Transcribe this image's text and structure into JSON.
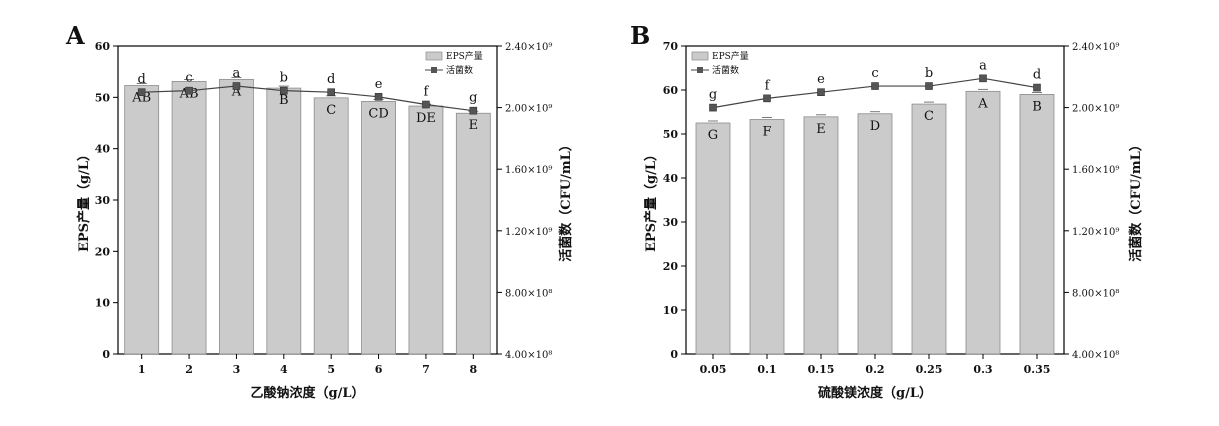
{
  "chart_data": [
    {
      "panel_label": "A",
      "type": "bar",
      "combo": "bar with line on secondary axis",
      "categories": [
        "1",
        "2",
        "3",
        "4",
        "5",
        "6",
        "7",
        "8"
      ],
      "xlabel": "乙酸钠浓度（g/L）",
      "ylabel": "EPS产量（g/L）",
      "y2label": "活菌数（CFU/mL）",
      "ylim": [
        0,
        60
      ],
      "y_ticks": [
        "0",
        "10",
        "20",
        "30",
        "40",
        "50",
        "60"
      ],
      "y2lim": [
        400000000,
        2400000000
      ],
      "y2_ticks": [
        "4.00×10⁸",
        "8.00×10⁸",
        "1.20×10⁹",
        "1.60×10⁹",
        "2.00×10⁹",
        "2.40×10⁹"
      ],
      "series": [
        {
          "name": "EPS产量",
          "kind": "bar",
          "axis": "left",
          "values": [
            52.3,
            53.1,
            53.5,
            51.8,
            49.9,
            49.2,
            48.3,
            46.9
          ],
          "labels": [
            "AB",
            "AB",
            "A",
            "B",
            "C",
            "CD",
            "DE",
            "E"
          ]
        },
        {
          "name": "活菌数",
          "kind": "line",
          "axis": "right",
          "values": [
            2100000000,
            2110000000,
            2140000000,
            2110000000,
            2100000000,
            2070000000,
            2020000000,
            1980000000
          ],
          "labels": [
            "d",
            "c",
            "a",
            "b",
            "d",
            "e",
            "f",
            "g"
          ]
        }
      ],
      "legend_position": "top-right",
      "grid": false,
      "colors": {
        "bar": "#cbcbcb",
        "bar_edge": "#8c8c8c",
        "line": "#444444"
      }
    },
    {
      "panel_label": "B",
      "type": "bar",
      "combo": "bar with line on secondary axis",
      "categories": [
        "0.05",
        "0.1",
        "0.15",
        "0.2",
        "0.25",
        "0.3",
        "0.35"
      ],
      "xlabel": "硫酸镁浓度（g/L）",
      "ylabel": "EPS产量（g/L）",
      "y2label": "活菌数（CFU/mL）",
      "ylim": [
        0,
        70
      ],
      "y_ticks": [
        "0",
        "10",
        "20",
        "30",
        "40",
        "50",
        "60",
        "70"
      ],
      "y2lim": [
        400000000,
        2400000000
      ],
      "y2_ticks": [
        "4.00×10⁸",
        "8.00×10⁸",
        "1.20×10⁹",
        "1.60×10⁹",
        "2.00×10⁹",
        "2.40×10⁹"
      ],
      "series": [
        {
          "name": "EPS产量",
          "kind": "bar",
          "axis": "left",
          "values": [
            52.5,
            53.3,
            53.9,
            54.6,
            56.8,
            59.7,
            59.0
          ],
          "labels": [
            "G",
            "F",
            "E",
            "D",
            "C",
            "A",
            "B"
          ]
        },
        {
          "name": "活菌数",
          "kind": "line",
          "axis": "right",
          "values": [
            2000000000,
            2060000000,
            2100000000,
            2140000000,
            2140000000,
            2190000000,
            2130000000
          ],
          "labels": [
            "g",
            "f",
            "e",
            "c",
            "b",
            "a",
            "d"
          ]
        }
      ],
      "legend_position": "top-left",
      "grid": false,
      "colors": {
        "bar": "#cbcbcb",
        "bar_edge": "#8c8c8c",
        "line": "#444444"
      }
    }
  ]
}
